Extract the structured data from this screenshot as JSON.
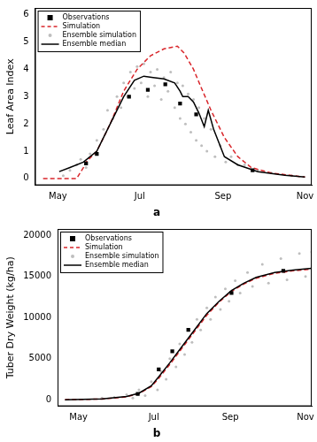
{
  "chart_data": [
    {
      "type": "line",
      "title": "a",
      "y_label": "Leaf Area Index",
      "legend": "top-left",
      "grid": false,
      "xlim": [
        104,
        310
      ],
      "xticks": [
        {
          "value": 121,
          "label": "May"
        },
        {
          "value": 182,
          "label": "Jul"
        },
        {
          "value": 244,
          "label": "Sep"
        },
        {
          "value": 305,
          "label": "Nov"
        }
      ],
      "ylim": [
        -0.25,
        6.25
      ],
      "yticks": [
        0,
        1,
        2,
        3,
        4,
        5,
        6
      ],
      "series": [
        {
          "name": "Observations",
          "type": "scatter",
          "marker": "square",
          "color": "#000000",
          "x": [
            142,
            150,
            174,
            188,
            201,
            212,
            224,
            266
          ],
          "values": [
            0.55,
            0.9,
            3.0,
            3.25,
            3.45,
            2.75,
            2.35,
            0.3
          ]
        },
        {
          "name": "Simulation",
          "type": "line",
          "line_style": "dashed",
          "color": "#d9262b",
          "x": [
            110,
            135,
            140,
            142,
            150,
            160,
            170,
            180,
            190,
            200,
            210,
            215,
            222,
            228,
            235,
            245,
            255,
            265,
            280,
            305
          ],
          "values": [
            0,
            0,
            0.4,
            0.6,
            1.0,
            2.0,
            3.2,
            4.0,
            4.5,
            4.75,
            4.85,
            4.6,
            4.0,
            3.3,
            2.5,
            1.5,
            0.8,
            0.4,
            0.2,
            0.05
          ]
        },
        {
          "name": "Ensemble simulation",
          "type": "scatter",
          "marker": "circle",
          "color": "#bebebe",
          "x": [
            125,
            130,
            135,
            138,
            142,
            145,
            150,
            155,
            158,
            162,
            165,
            168,
            170,
            173,
            175,
            178,
            180,
            183,
            185,
            188,
            190,
            193,
            195,
            198,
            200,
            203,
            205,
            208,
            210,
            212,
            214,
            216,
            218,
            220,
            222,
            224,
            226,
            228,
            230,
            232,
            235,
            238,
            242,
            246,
            250,
            255,
            260,
            270,
            280,
            295
          ],
          "values": [
            0.1,
            0.3,
            0.5,
            0.7,
            0.4,
            0.9,
            1.4,
            1.8,
            2.5,
            2.2,
            3.0,
            2.6,
            3.5,
            3.0,
            3.9,
            3.3,
            4.1,
            3.5,
            4.2,
            3.0,
            3.9,
            3.4,
            4.0,
            2.9,
            3.7,
            3.2,
            3.9,
            2.6,
            3.5,
            2.2,
            3.4,
            2.0,
            3.1,
            1.7,
            2.9,
            1.4,
            2.6,
            1.2,
            2.2,
            1.0,
            1.8,
            0.8,
            1.2,
            0.6,
            0.8,
            0.5,
            0.5,
            0.3,
            0.2,
            0.1
          ]
        },
        {
          "name": "Ensemble median",
          "type": "line",
          "line_style": "solid",
          "color": "#000000",
          "x": [
            122,
            130,
            140,
            150,
            160,
            170,
            178,
            185,
            192,
            200,
            208,
            212,
            214,
            218,
            222,
            226,
            230,
            233,
            237,
            245,
            255,
            270,
            290,
            305
          ],
          "values": [
            0.25,
            0.4,
            0.6,
            1.0,
            2.0,
            3.0,
            3.6,
            3.75,
            3.7,
            3.65,
            3.5,
            3.2,
            3.0,
            3.0,
            2.8,
            2.4,
            1.9,
            2.5,
            1.8,
            0.8,
            0.5,
            0.25,
            0.12,
            0.05
          ]
        }
      ]
    },
    {
      "type": "line",
      "title": "b",
      "y_label": "Tuber Dry Weight (kg/ha)",
      "legend": "top-left",
      "grid": false,
      "xlim": [
        104,
        310
      ],
      "xticks": [
        {
          "value": 121,
          "label": "May"
        },
        {
          "value": 182,
          "label": "Jul"
        },
        {
          "value": 244,
          "label": "Sep"
        },
        {
          "value": 305,
          "label": "Nov"
        }
      ],
      "ylim": [
        -800,
        20800
      ],
      "yticks": [
        0,
        5000,
        10000,
        15000,
        20000
      ],
      "series": [
        {
          "name": "Observations",
          "type": "scatter",
          "marker": "square",
          "color": "#000000",
          "x": [
            169,
            186,
            197,
            210,
            245,
            287
          ],
          "values": [
            700,
            3700,
            5900,
            8500,
            13000,
            15700
          ]
        },
        {
          "name": "Simulation",
          "type": "line",
          "line_style": "dashed",
          "color": "#d9262b",
          "x": [
            110,
            140,
            160,
            170,
            180,
            186,
            195,
            205,
            215,
            225,
            235,
            245,
            255,
            265,
            280,
            295,
            310
          ],
          "values": [
            0,
            80,
            350,
            750,
            1600,
            2600,
            4300,
            6300,
            8300,
            10300,
            11900,
            13200,
            14100,
            14800,
            15400,
            15700,
            15900
          ]
        },
        {
          "name": "Ensemble simulation",
          "type": "scatter",
          "marker": "circle",
          "color": "#bebebe",
          "x": [
            140,
            150,
            160,
            165,
            170,
            175,
            180,
            185,
            188,
            192,
            195,
            200,
            203,
            207,
            210,
            213,
            217,
            220,
            225,
            228,
            232,
            236,
            240,
            243,
            248,
            252,
            258,
            262,
            270,
            275,
            285,
            290,
            300,
            305,
            310,
            312
          ],
          "values": [
            200,
            300,
            600,
            200,
            1200,
            500,
            2200,
            1200,
            3400,
            2500,
            5000,
            4000,
            6800,
            5500,
            8500,
            7000,
            9800,
            8500,
            11200,
            9800,
            12500,
            11000,
            13500,
            12000,
            14500,
            13000,
            15500,
            13800,
            16500,
            14200,
            17200,
            14600,
            17800,
            15000,
            18000,
            14000
          ]
        },
        {
          "name": "Ensemble median",
          "type": "line",
          "line_style": "solid",
          "color": "#000000",
          "x": [
            110,
            140,
            160,
            170,
            180,
            186,
            195,
            205,
            215,
            225,
            235,
            245,
            255,
            265,
            280,
            295,
            310
          ],
          "values": [
            0,
            100,
            400,
            800,
            1700,
            2800,
            4500,
            6500,
            8500,
            10500,
            12000,
            13300,
            14200,
            14900,
            15500,
            15800,
            16000
          ]
        }
      ]
    }
  ]
}
